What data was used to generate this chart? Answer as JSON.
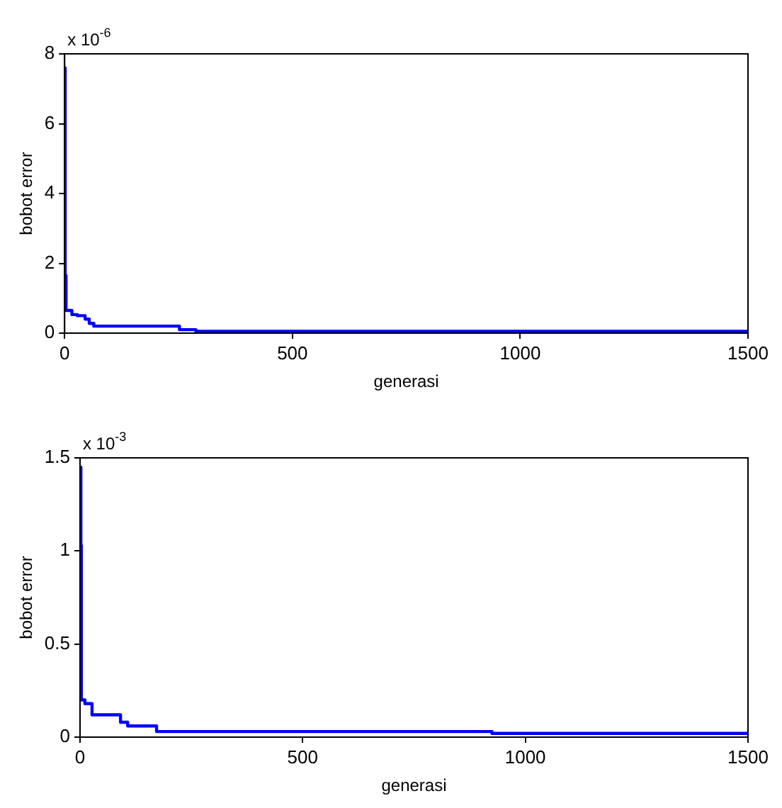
{
  "chart_data": [
    {
      "type": "step",
      "xlabel": "generasi",
      "ylabel": "bobot error",
      "annotations": [
        "x 10$^{-6}$"
      ],
      "xlim": [
        0,
        1500
      ],
      "xticks": [
        0,
        500,
        1000,
        1500
      ],
      "ylim": [
        0,
        8
      ],
      "yticks": [
        0,
        2,
        4,
        6,
        8
      ],
      "grid": false,
      "legend": false,
      "marker": "none",
      "line_style": "solid",
      "series": [
        {
          "color": "#0000ff",
          "x": [
            0,
            1,
            3,
            16,
            28,
            45,
            54,
            64,
            252,
            288,
            1500
          ],
          "values": [
            7.6,
            1.65,
            0.65,
            0.53,
            0.5,
            0.4,
            0.28,
            0.2,
            0.1,
            0.05,
            0.05
          ]
        }
      ]
    },
    {
      "type": "step",
      "xlabel": "generasi",
      "ylabel": "bobot error",
      "annotations": [
        "x 10$^{-3}$"
      ],
      "xlim": [
        0,
        1500
      ],
      "xticks": [
        0,
        500,
        1000,
        1500
      ],
      "ylim": [
        0,
        1.5
      ],
      "yticks": [
        0,
        0.5,
        1,
        1.5
      ],
      "grid": false,
      "legend": false,
      "marker": "none",
      "line_style": "solid",
      "series": [
        {
          "color": "#0000ff",
          "x": [
            0,
            2,
            3,
            11,
            27,
            91,
            107,
            172,
            925,
            1500
          ],
          "values": [
            1.45,
            1.03,
            0.2,
            0.18,
            0.12,
            0.08,
            0.06,
            0.03,
            0.02,
            0.01
          ]
        }
      ]
    }
  ]
}
